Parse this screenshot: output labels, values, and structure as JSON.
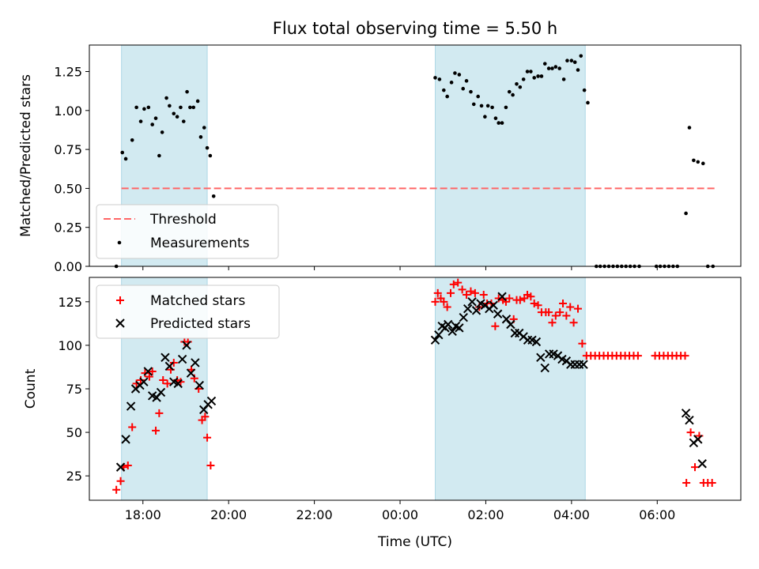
{
  "chart_data": {
    "type": "scatter",
    "title": "Flux total observing time = 5.50 h",
    "xlabel": "Time (UTC)",
    "x_unit": "hours",
    "x_range": [
      16.75,
      31.95
    ],
    "x_ticks": [
      "18:00",
      "20:00",
      "22:00",
      "00:00",
      "02:00",
      "04:00",
      "06:00"
    ],
    "x_tick_values": [
      18,
      20,
      22,
      24,
      26,
      28,
      30
    ],
    "shaded_intervals": [
      [
        17.5,
        19.5
      ],
      [
        24.82,
        28.32
      ]
    ],
    "shade_color": "#add8e6",
    "top": {
      "ylabel": "Matched/Predicted stars",
      "ylim": [
        0,
        1.42
      ],
      "y_ticks": [
        "0.00",
        "0.25",
        "0.50",
        "0.75",
        "1.00",
        "1.25"
      ],
      "threshold": {
        "name": "Threshold",
        "value": 0.5,
        "x_range": [
          17.5,
          31.35
        ],
        "color": "#ff6666"
      },
      "legend": {
        "placement": "lower-left",
        "entries": [
          "Threshold",
          "Measurements"
        ]
      },
      "series": [
        {
          "name": "Measurements",
          "color": "#000000",
          "points": [
            [
              17.38,
              0.0
            ],
            [
              17.52,
              0.73
            ],
            [
              17.6,
              0.69
            ],
            [
              17.75,
              0.81
            ],
            [
              17.85,
              1.02
            ],
            [
              17.95,
              0.93
            ],
            [
              18.03,
              1.01
            ],
            [
              18.13,
              1.02
            ],
            [
              18.22,
              0.91
            ],
            [
              18.3,
              0.95
            ],
            [
              18.38,
              0.71
            ],
            [
              18.45,
              0.86
            ],
            [
              18.55,
              1.08
            ],
            [
              18.62,
              1.03
            ],
            [
              18.72,
              0.98
            ],
            [
              18.8,
              0.96
            ],
            [
              18.88,
              1.02
            ],
            [
              18.95,
              0.93
            ],
            [
              19.03,
              1.12
            ],
            [
              19.1,
              1.02
            ],
            [
              19.18,
              1.02
            ],
            [
              19.28,
              1.06
            ],
            [
              19.35,
              0.83
            ],
            [
              19.43,
              0.89
            ],
            [
              19.5,
              0.76
            ],
            [
              19.57,
              0.71
            ],
            [
              19.65,
              0.45
            ],
            [
              24.82,
              1.21
            ],
            [
              24.92,
              1.2
            ],
            [
              25.02,
              1.13
            ],
            [
              25.1,
              1.09
            ],
            [
              25.2,
              1.18
            ],
            [
              25.28,
              1.24
            ],
            [
              25.38,
              1.23
            ],
            [
              25.47,
              1.14
            ],
            [
              25.55,
              1.19
            ],
            [
              25.65,
              1.12
            ],
            [
              25.72,
              1.04
            ],
            [
              25.82,
              1.09
            ],
            [
              25.9,
              1.03
            ],
            [
              25.98,
              0.96
            ],
            [
              26.05,
              1.03
            ],
            [
              26.15,
              1.02
            ],
            [
              26.23,
              0.95
            ],
            [
              26.3,
              0.92
            ],
            [
              26.38,
              0.92
            ],
            [
              26.47,
              1.02
            ],
            [
              26.55,
              1.12
            ],
            [
              26.63,
              1.1
            ],
            [
              26.72,
              1.17
            ],
            [
              26.8,
              1.15
            ],
            [
              26.88,
              1.2
            ],
            [
              26.97,
              1.25
            ],
            [
              27.05,
              1.25
            ],
            [
              27.13,
              1.21
            ],
            [
              27.22,
              1.22
            ],
            [
              27.3,
              1.22
            ],
            [
              27.38,
              1.3
            ],
            [
              27.47,
              1.27
            ],
            [
              27.55,
              1.27
            ],
            [
              27.63,
              1.28
            ],
            [
              27.72,
              1.27
            ],
            [
              27.82,
              1.2
            ],
            [
              27.9,
              1.32
            ],
            [
              28.0,
              1.32
            ],
            [
              28.08,
              1.31
            ],
            [
              28.15,
              1.26
            ],
            [
              28.22,
              1.35
            ],
            [
              28.3,
              1.13
            ],
            [
              28.38,
              1.05
            ],
            [
              28.58,
              0.0
            ],
            [
              28.67,
              0.0
            ],
            [
              28.77,
              0.0
            ],
            [
              28.87,
              0.0
            ],
            [
              28.97,
              0.0
            ],
            [
              29.07,
              0.0
            ],
            [
              29.17,
              0.0
            ],
            [
              29.27,
              0.0
            ],
            [
              29.37,
              0.0
            ],
            [
              29.47,
              0.0
            ],
            [
              29.58,
              0.0
            ],
            [
              29.98,
              0.0
            ],
            [
              30.07,
              0.0
            ],
            [
              30.17,
              0.0
            ],
            [
              30.27,
              0.0
            ],
            [
              30.37,
              0.0
            ],
            [
              30.47,
              0.0
            ],
            [
              30.67,
              0.34
            ],
            [
              30.75,
              0.89
            ],
            [
              30.85,
              0.68
            ],
            [
              30.95,
              0.67
            ],
            [
              31.07,
              0.66
            ],
            [
              31.18,
              0.0
            ],
            [
              31.3,
              0.0
            ]
          ]
        }
      ]
    },
    "bottom": {
      "ylabel": "Count",
      "ylim": [
        11,
        139
      ],
      "y_ticks": [
        "25",
        "50",
        "75",
        "100",
        "125"
      ],
      "legend": {
        "placement": "upper-left",
        "entries": [
          "Matched stars",
          "Predicted stars"
        ]
      },
      "series": [
        {
          "name": "Matched stars",
          "marker": "plus",
          "color": "#ff0000",
          "points": [
            [
              17.38,
              17
            ],
            [
              17.48,
              22
            ],
            [
              17.55,
              30
            ],
            [
              17.65,
              31
            ],
            [
              17.75,
              53
            ],
            [
              17.85,
              78
            ],
            [
              17.95,
              80
            ],
            [
              18.05,
              84
            ],
            [
              18.15,
              82
            ],
            [
              18.22,
              85
            ],
            [
              18.3,
              51
            ],
            [
              18.38,
              61
            ],
            [
              18.47,
              80
            ],
            [
              18.57,
              78
            ],
            [
              18.65,
              86
            ],
            [
              18.72,
              90
            ],
            [
              18.8,
              80
            ],
            [
              18.88,
              79
            ],
            [
              18.97,
              102
            ],
            [
              19.05,
              102
            ],
            [
              19.13,
              86
            ],
            [
              19.2,
              81
            ],
            [
              19.3,
              75
            ],
            [
              19.38,
              57
            ],
            [
              19.45,
              59
            ],
            [
              19.5,
              47
            ],
            [
              19.58,
              31
            ],
            [
              24.82,
              125
            ],
            [
              24.88,
              130
            ],
            [
              24.95,
              127
            ],
            [
              25.02,
              125
            ],
            [
              25.1,
              122
            ],
            [
              25.18,
              130
            ],
            [
              25.25,
              135
            ],
            [
              25.35,
              136
            ],
            [
              25.45,
              132
            ],
            [
              25.55,
              129
            ],
            [
              25.65,
              131
            ],
            [
              25.75,
              130
            ],
            [
              25.85,
              122
            ],
            [
              25.95,
              129
            ],
            [
              26.03,
              124
            ],
            [
              26.13,
              124
            ],
            [
              26.22,
              111
            ],
            [
              26.3,
              127
            ],
            [
              26.4,
              126
            ],
            [
              26.47,
              125
            ],
            [
              26.55,
              127
            ],
            [
              26.65,
              115
            ],
            [
              26.72,
              126
            ],
            [
              26.8,
              126
            ],
            [
              26.9,
              127
            ],
            [
              26.97,
              129
            ],
            [
              27.05,
              128
            ],
            [
              27.13,
              124
            ],
            [
              27.22,
              123
            ],
            [
              27.3,
              119
            ],
            [
              27.4,
              119
            ],
            [
              27.47,
              119
            ],
            [
              27.55,
              113
            ],
            [
              27.63,
              117
            ],
            [
              27.73,
              119
            ],
            [
              27.8,
              124
            ],
            [
              27.88,
              117
            ],
            [
              27.97,
              122
            ],
            [
              28.05,
              113
            ],
            [
              28.15,
              121
            ],
            [
              28.25,
              101
            ],
            [
              28.35,
              94
            ],
            [
              28.45,
              94
            ],
            [
              28.55,
              94
            ],
            [
              28.65,
              94
            ],
            [
              28.75,
              94
            ],
            [
              28.85,
              94
            ],
            [
              28.95,
              94
            ],
            [
              29.05,
              94
            ],
            [
              29.15,
              94
            ],
            [
              29.25,
              94
            ],
            [
              29.35,
              94
            ],
            [
              29.45,
              94
            ],
            [
              29.55,
              94
            ],
            [
              29.95,
              94
            ],
            [
              30.05,
              94
            ],
            [
              30.15,
              94
            ],
            [
              30.25,
              94
            ],
            [
              30.35,
              94
            ],
            [
              30.45,
              94
            ],
            [
              30.55,
              94
            ],
            [
              30.65,
              94
            ],
            [
              30.68,
              21
            ],
            [
              30.78,
              50
            ],
            [
              30.88,
              30
            ],
            [
              30.98,
              48
            ],
            [
              31.08,
              21
            ],
            [
              31.18,
              21
            ],
            [
              31.28,
              21
            ]
          ]
        },
        {
          "name": "Predicted stars",
          "marker": "x",
          "color": "#000000",
          "points": [
            [
              17.48,
              30
            ],
            [
              17.6,
              46
            ],
            [
              17.72,
              65
            ],
            [
              17.83,
              75
            ],
            [
              17.93,
              77
            ],
            [
              18.02,
              79
            ],
            [
              18.12,
              85
            ],
            [
              18.22,
              71
            ],
            [
              18.32,
              70
            ],
            [
              18.42,
              73
            ],
            [
              18.52,
              93
            ],
            [
              18.62,
              88
            ],
            [
              18.72,
              79
            ],
            [
              18.82,
              78
            ],
            [
              18.92,
              92
            ],
            [
              19.02,
              100
            ],
            [
              19.12,
              84
            ],
            [
              19.22,
              90
            ],
            [
              19.32,
              77
            ],
            [
              19.42,
              63
            ],
            [
              19.52,
              66
            ],
            [
              19.6,
              68
            ],
            [
              24.82,
              103
            ],
            [
              24.9,
              106
            ],
            [
              24.98,
              111
            ],
            [
              25.05,
              110
            ],
            [
              25.12,
              112
            ],
            [
              25.22,
              108
            ],
            [
              25.3,
              111
            ],
            [
              25.38,
              110
            ],
            [
              25.48,
              116
            ],
            [
              25.58,
              121
            ],
            [
              25.68,
              125
            ],
            [
              25.78,
              120
            ],
            [
              25.88,
              124
            ],
            [
              25.98,
              123
            ],
            [
              26.08,
              121
            ],
            [
              26.18,
              123
            ],
            [
              26.28,
              118
            ],
            [
              26.38,
              128
            ],
            [
              26.48,
              115
            ],
            [
              26.58,
              112
            ],
            [
              26.68,
              107
            ],
            [
              26.78,
              107
            ],
            [
              26.88,
              105
            ],
            [
              26.98,
              103
            ],
            [
              27.08,
              103
            ],
            [
              27.18,
              102
            ],
            [
              27.28,
              93
            ],
            [
              27.38,
              87
            ],
            [
              27.48,
              95
            ],
            [
              27.58,
              95
            ],
            [
              27.68,
              94
            ],
            [
              27.78,
              92
            ],
            [
              27.88,
              91
            ],
            [
              27.98,
              89
            ],
            [
              28.08,
              89
            ],
            [
              28.18,
              89
            ],
            [
              28.28,
              89
            ],
            [
              30.67,
              61
            ],
            [
              30.75,
              57
            ],
            [
              30.85,
              44
            ],
            [
              30.95,
              46
            ],
            [
              31.05,
              32
            ]
          ]
        }
      ]
    }
  }
}
